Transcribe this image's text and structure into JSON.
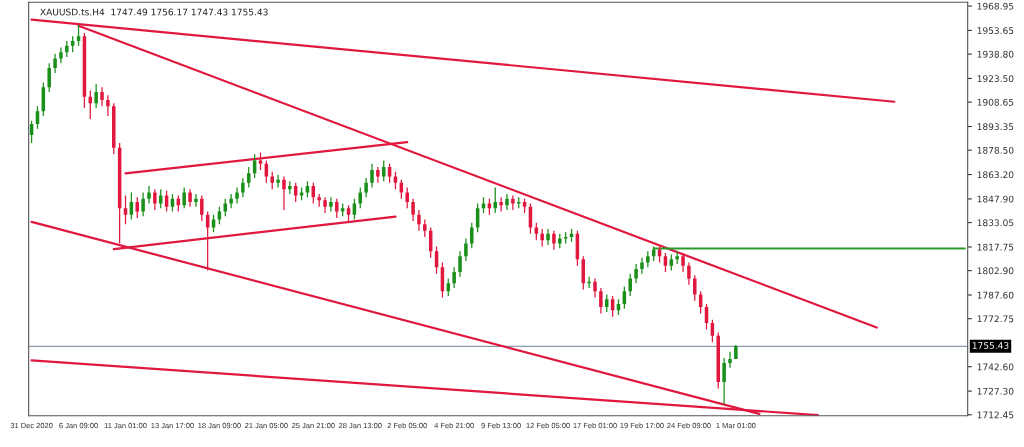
{
  "chart_data": {
    "type": "candlestick",
    "title": "XAUUSD.ts.H4  1747.49 1756.17 1747.43 1755.43",
    "colors": [
      "#1a8f1a",
      "#1a8f1a",
      "#1a8f1a",
      "#1a8f1a",
      "#1a8f1a",
      "#1a8f1a",
      "#1a8f1a",
      "#1a8f1a",
      "#1a8f1a",
      "#e0183f",
      "#e0183f",
      "#1a8f1a",
      "#e0183f",
      "#e0183f",
      "#e0183f",
      "#e0183f",
      "#e0183f",
      "#1a8f1a",
      "#e0183f",
      "#1a8f1a",
      "#1a8f1a",
      "#e0183f",
      "#1a8f1a",
      "#e0183f",
      "#1a8f1a",
      "#e0183f",
      "#1a8f1a",
      "#e0183f",
      "#1a8f1a",
      "#e0183f",
      "#e0183f",
      "#1a8f1a",
      "#1a8f1a",
      "#1a8f1a",
      "#1a8f1a",
      "#1a8f1a",
      "#1a8f1a",
      "#1a8f1a",
      "#1a8f1a",
      "#e0183f",
      "#e0183f",
      "#e0183f",
      "#1a8f1a",
      "#e0183f",
      "#1a8f1a",
      "#e0183f",
      "#1a8f1a",
      "#1a8f1a",
      "#e0183f",
      "#e0183f",
      "#e0183f",
      "#1a8f1a",
      "#e0183f",
      "#1a8f1a",
      "#e0183f",
      "#1a8f1a",
      "#1a8f1a",
      "#1a8f1a",
      "#1a8f1a",
      "#e0183f",
      "#1a8f1a",
      "#e0183f",
      "#e0183f",
      "#e0183f",
      "#e0183f",
      "#e0183f",
      "#e0183f",
      "#e0183f",
      "#e0183f",
      "#e0183f",
      "#e0183f",
      "#1a8f1a",
      "#1a8f1a",
      "#1a8f1a",
      "#1a8f1a",
      "#1a8f1a",
      "#1a8f1a",
      "#1a8f1a",
      "#e0183f",
      "#1a8f1a",
      "#e0183f",
      "#1a8f1a",
      "#e0183f",
      "#1a8f1a",
      "#e0183f",
      "#e0183f",
      "#e0183f",
      "#e0183f",
      "#1a8f1a",
      "#e0183f",
      "#1a8f1a",
      "#1a8f1a",
      "#1a8f1a",
      "#e0183f",
      "#e0183f",
      "#1a8f1a",
      "#e0183f",
      "#e0183f",
      "#1a8f1a",
      "#e0183f",
      "#1a8f1a",
      "#1a8f1a",
      "#1a8f1a",
      "#1a8f1a",
      "#1a8f1a",
      "#1a8f1a",
      "#1a8f1a",
      "#e0183f",
      "#e0183f",
      "#1a8f1a",
      "#1a8f1a",
      "#e0183f",
      "#e0183f",
      "#e0183f",
      "#e0183f",
      "#e0183f",
      "#e0183f",
      "#e0183f",
      "#1a8f1a",
      "#1a8f1a",
      "#1a8f1a",
      null,
      null,
      null,
      null,
      null,
      null,
      null,
      null,
      null,
      null,
      null,
      null,
      null,
      null,
      null,
      null,
      null,
      null,
      null,
      null,
      null,
      null,
      null,
      null,
      null,
      null,
      null,
      null,
      null,
      null,
      null,
      null,
      null,
      null,
      null,
      null,
      null,
      null,
      null
    ],
    "categories": [
      "31 Dec 2020",
      null,
      null,
      null,
      null,
      null,
      null,
      null,
      "6 Jan 09:00",
      null,
      null,
      null,
      null,
      null,
      null,
      null,
      "11 Jan 01:00",
      null,
      null,
      null,
      null,
      null,
      null,
      null,
      "13 Jan 17:00",
      null,
      null,
      null,
      null,
      null,
      null,
      null,
      "18 Jan 09:00",
      null,
      null,
      null,
      null,
      null,
      null,
      null,
      "21 Jan 05:00",
      null,
      null,
      null,
      null,
      null,
      null,
      null,
      "25 Jan 21:00",
      null,
      null,
      null,
      null,
      null,
      null,
      null,
      "28 Jan 13:00",
      null,
      null,
      null,
      null,
      null,
      null,
      null,
      "2 Feb 05:00",
      null,
      null,
      null,
      null,
      null,
      null,
      null,
      "4 Feb 21:00",
      null,
      null,
      null,
      null,
      null,
      null,
      null,
      "9 Feb 13:00",
      null,
      null,
      null,
      null,
      null,
      null,
      null,
      "12 Feb 05:00",
      null,
      null,
      null,
      null,
      null,
      null,
      null,
      "17 Feb 01:00",
      null,
      null,
      null,
      null,
      null,
      null,
      null,
      "19 Feb 17:00",
      null,
      null,
      null,
      null,
      null,
      null,
      null,
      "24 Feb 09:00",
      null,
      null,
      null,
      null,
      null,
      null,
      null,
      "1 Mar 01:00",
      null,
      null,
      null,
      null,
      null,
      null,
      null,
      null,
      null,
      null,
      null,
      null,
      null,
      null,
      null,
      null,
      null,
      null,
      null,
      null,
      null,
      null,
      null,
      null,
      null,
      null,
      null,
      null,
      null,
      null,
      null,
      null,
      null,
      null,
      null,
      null,
      null,
      null,
      null
    ],
    "ohlc": [
      [
        1888,
        1897,
        1883,
        1895
      ],
      [
        1895,
        1906,
        1892,
        1903
      ],
      [
        1903,
        1921,
        1900,
        1918
      ],
      [
        1918,
        1933,
        1915,
        1930
      ],
      [
        1930,
        1939,
        1927,
        1936
      ],
      [
        1936,
        1943,
        1933,
        1940
      ],
      [
        1940,
        1947,
        1937,
        1944
      ],
      [
        1944,
        1950,
        1940,
        1947
      ],
      [
        1947,
        1957,
        1944,
        1950
      ],
      [
        1950,
        1952,
        1905,
        1912
      ],
      [
        1912,
        1916,
        1898,
        1908
      ],
      [
        1908,
        1920,
        1905,
        1915
      ],
      [
        1915,
        1918,
        1906,
        1910
      ],
      [
        1910,
        1913,
        1900,
        1906
      ],
      [
        1906,
        1908,
        1876,
        1880
      ],
      [
        1880,
        1883,
        1820,
        1842
      ],
      [
        1842,
        1850,
        1832,
        1838
      ],
      [
        1838,
        1852,
        1835,
        1846
      ],
      [
        1846,
        1849,
        1836,
        1840
      ],
      [
        1840,
        1852,
        1837,
        1848
      ],
      [
        1848,
        1856,
        1845,
        1852
      ],
      [
        1852,
        1854,
        1841,
        1845
      ],
      [
        1845,
        1854,
        1842,
        1850
      ],
      [
        1850,
        1853,
        1840,
        1843
      ],
      [
        1843,
        1851,
        1840,
        1848
      ],
      [
        1848,
        1850,
        1840,
        1844
      ],
      [
        1844,
        1855,
        1842,
        1852
      ],
      [
        1852,
        1854,
        1843,
        1846
      ],
      [
        1846,
        1851,
        1843,
        1848
      ],
      [
        1848,
        1850,
        1834,
        1838
      ],
      [
        1838,
        1840,
        1803,
        1830
      ],
      [
        1830,
        1838,
        1827,
        1835
      ],
      [
        1835,
        1843,
        1832,
        1840
      ],
      [
        1840,
        1848,
        1837,
        1845
      ],
      [
        1845,
        1851,
        1842,
        1848
      ],
      [
        1848,
        1855,
        1845,
        1852
      ],
      [
        1852,
        1861,
        1849,
        1858
      ],
      [
        1858,
        1868,
        1855,
        1864
      ],
      [
        1864,
        1876,
        1861,
        1872
      ],
      [
        1872,
        1877,
        1866,
        1870
      ],
      [
        1870,
        1872,
        1858,
        1862
      ],
      [
        1862,
        1865,
        1854,
        1858
      ],
      [
        1858,
        1863,
        1855,
        1860
      ],
      [
        1860,
        1862,
        1841,
        1854
      ],
      [
        1854,
        1859,
        1851,
        1856
      ],
      [
        1856,
        1858,
        1846,
        1850
      ],
      [
        1850,
        1855,
        1847,
        1852
      ],
      [
        1852,
        1859,
        1849,
        1856
      ],
      [
        1856,
        1858,
        1845,
        1849
      ],
      [
        1849,
        1851,
        1843,
        1847
      ],
      [
        1847,
        1849,
        1839,
        1843
      ],
      [
        1843,
        1849,
        1840,
        1846
      ],
      [
        1846,
        1848,
        1836,
        1840
      ],
      [
        1840,
        1845,
        1837,
        1842
      ],
      [
        1842,
        1844,
        1834,
        1838
      ],
      [
        1838,
        1848,
        1835,
        1845
      ],
      [
        1845,
        1855,
        1842,
        1852
      ],
      [
        1852,
        1861,
        1849,
        1858
      ],
      [
        1858,
        1870,
        1855,
        1866
      ],
      [
        1866,
        1868,
        1858,
        1862
      ],
      [
        1862,
        1872,
        1859,
        1868
      ],
      [
        1868,
        1870,
        1858,
        1862
      ],
      [
        1862,
        1865,
        1854,
        1858
      ],
      [
        1858,
        1860,
        1848,
        1852
      ],
      [
        1852,
        1855,
        1842,
        1846
      ],
      [
        1846,
        1848,
        1834,
        1838
      ],
      [
        1838,
        1841,
        1828,
        1832
      ],
      [
        1832,
        1835,
        1824,
        1828
      ],
      [
        1828,
        1830,
        1811,
        1815
      ],
      [
        1815,
        1818,
        1801,
        1805
      ],
      [
        1805,
        1808,
        1786,
        1790
      ],
      [
        1790,
        1798,
        1787,
        1795
      ],
      [
        1795,
        1805,
        1792,
        1802
      ],
      [
        1802,
        1815,
        1799,
        1812
      ],
      [
        1812,
        1823,
        1809,
        1820
      ],
      [
        1820,
        1833,
        1817,
        1830
      ],
      [
        1830,
        1845,
        1827,
        1842
      ],
      [
        1842,
        1849,
        1839,
        1845
      ],
      [
        1845,
        1848,
        1838,
        1842
      ],
      [
        1842,
        1855,
        1839,
        1846
      ],
      [
        1846,
        1849,
        1840,
        1844
      ],
      [
        1844,
        1851,
        1841,
        1848
      ],
      [
        1848,
        1850,
        1841,
        1845
      ],
      [
        1845,
        1849,
        1842,
        1846
      ],
      [
        1846,
        1848,
        1839,
        1843
      ],
      [
        1843,
        1845,
        1826,
        1830
      ],
      [
        1830,
        1833,
        1822,
        1826
      ],
      [
        1826,
        1829,
        1818,
        1822
      ],
      [
        1822,
        1829,
        1819,
        1826
      ],
      [
        1826,
        1828,
        1816,
        1820
      ],
      [
        1820,
        1826,
        1817,
        1823
      ],
      [
        1823,
        1827,
        1820,
        1824
      ],
      [
        1824,
        1829,
        1821,
        1826
      ],
      [
        1826,
        1828,
        1806,
        1810
      ],
      [
        1810,
        1812,
        1791,
        1795
      ],
      [
        1795,
        1799,
        1792,
        1796
      ],
      [
        1796,
        1798,
        1786,
        1790
      ],
      [
        1790,
        1792,
        1776,
        1780
      ],
      [
        1780,
        1788,
        1777,
        1785
      ],
      [
        1785,
        1787,
        1774,
        1778
      ],
      [
        1778,
        1785,
        1775,
        1782
      ],
      [
        1782,
        1793,
        1779,
        1790
      ],
      [
        1790,
        1801,
        1787,
        1798
      ],
      [
        1798,
        1807,
        1795,
        1804
      ],
      [
        1804,
        1811,
        1801,
        1808
      ],
      [
        1808,
        1815,
        1805,
        1812
      ],
      [
        1812,
        1818,
        1809,
        1816
      ],
      [
        1816,
        1818,
        1808,
        1812
      ],
      [
        1812,
        1814,
        1802,
        1806
      ],
      [
        1806,
        1813,
        1803,
        1810
      ],
      [
        1810,
        1815,
        1807,
        1812
      ],
      [
        1812,
        1814,
        1802,
        1806
      ],
      [
        1806,
        1808,
        1794,
        1798
      ],
      [
        1798,
        1800,
        1784,
        1788
      ],
      [
        1788,
        1790,
        1776,
        1780
      ],
      [
        1780,
        1782,
        1766,
        1770
      ],
      [
        1770,
        1772,
        1758,
        1762
      ],
      [
        1762,
        1764,
        1729,
        1733
      ],
      [
        1733,
        1748,
        1719,
        1745
      ],
      [
        1745,
        1752,
        1742,
        1747.5
      ],
      [
        1747.49,
        1756.17,
        1747.43,
        1755.43
      ],
      null,
      null,
      null,
      null,
      null,
      null,
      null,
      null,
      null,
      null,
      null,
      null,
      null,
      null,
      null,
      null,
      null,
      null,
      null,
      null,
      null,
      null,
      null,
      null,
      null,
      null,
      null,
      null,
      null,
      null,
      null,
      null,
      null,
      null,
      null,
      null,
      null,
      null,
      null
    ],
    "series": [
      {
        "type": "line",
        "color": "#e0183f",
        "values": [
          1960.4,
          null,
          null,
          null,
          null,
          null,
          null,
          null,
          null,
          null,
          null,
          null,
          null,
          null,
          null,
          null,
          null,
          null,
          null,
          null,
          null,
          null,
          null,
          null,
          null,
          null,
          null,
          null,
          null,
          null,
          null,
          null,
          null,
          null,
          null,
          null,
          null,
          null,
          null,
          null,
          null,
          null,
          null,
          null,
          null,
          null,
          null,
          null,
          null,
          null,
          null,
          null,
          null,
          null,
          null,
          null,
          null,
          null,
          null,
          null,
          null,
          null,
          null,
          null,
          null,
          null,
          null,
          null,
          null,
          null,
          null,
          null,
          null,
          null,
          null,
          null,
          null,
          null,
          null,
          null,
          null,
          null,
          null,
          null,
          null,
          null,
          null,
          null,
          null,
          null,
          null,
          null,
          null,
          null,
          null,
          null,
          null,
          null,
          null,
          null,
          null,
          null,
          null,
          null,
          null,
          null,
          null,
          null,
          null,
          null,
          null,
          null,
          null,
          null,
          null,
          null,
          null,
          null,
          null,
          null,
          null,
          null,
          null,
          null,
          null,
          null,
          null,
          null,
          null,
          null,
          null,
          null,
          null,
          null,
          null,
          null,
          null,
          null,
          null,
          null,
          null,
          null,
          null,
          null,
          null,
          null,
          null,
          1908.9,
          null,
          null,
          null,
          null,
          null,
          null,
          null,
          null,
          null,
          null,
          null,
          null
        ]
      },
      {
        "type": "line",
        "color": "#e0183f",
        "values": [
          null,
          null,
          null,
          null,
          null,
          null,
          null,
          null,
          1956.6,
          null,
          null,
          null,
          null,
          null,
          null,
          null,
          null,
          null,
          null,
          null,
          null,
          null,
          null,
          null,
          null,
          null,
          null,
          null,
          null,
          null,
          null,
          null,
          null,
          null,
          null,
          null,
          null,
          null,
          null,
          null,
          null,
          null,
          null,
          null,
          null,
          null,
          null,
          null,
          null,
          null,
          null,
          null,
          null,
          null,
          null,
          null,
          null,
          null,
          null,
          null,
          null,
          null,
          null,
          null,
          null,
          null,
          null,
          null,
          null,
          null,
          null,
          null,
          null,
          null,
          null,
          null,
          null,
          null,
          null,
          null,
          null,
          null,
          null,
          null,
          null,
          null,
          null,
          null,
          null,
          null,
          null,
          null,
          null,
          null,
          null,
          null,
          null,
          null,
          null,
          null,
          null,
          null,
          null,
          null,
          null,
          null,
          null,
          null,
          null,
          null,
          null,
          null,
          null,
          null,
          null,
          null,
          null,
          null,
          null,
          null,
          null,
          null,
          null,
          null,
          null,
          null,
          null,
          null,
          null,
          null,
          null,
          null,
          null,
          null,
          null,
          null,
          null,
          null,
          null,
          null,
          null,
          null,
          null,
          null,
          1767.2,
          null,
          null,
          null,
          null,
          null,
          null,
          null,
          null,
          null,
          null,
          null,
          null,
          null,
          null,
          null
        ]
      },
      {
        "type": "line",
        "color": "#e0183f",
        "values": [
          null,
          null,
          null,
          null,
          null,
          null,
          null,
          null,
          null,
          null,
          null,
          null,
          null,
          null,
          null,
          null,
          1863.9,
          null,
          null,
          null,
          null,
          null,
          null,
          null,
          null,
          null,
          null,
          null,
          null,
          null,
          null,
          null,
          null,
          null,
          null,
          null,
          null,
          null,
          null,
          null,
          null,
          null,
          null,
          null,
          null,
          null,
          null,
          null,
          null,
          null,
          null,
          null,
          null,
          null,
          null,
          null,
          null,
          null,
          null,
          null,
          null,
          null,
          null,
          null,
          1883.6,
          null,
          null,
          null,
          null,
          null,
          null,
          null,
          null,
          null,
          null,
          null,
          null,
          null,
          null,
          null,
          null,
          null,
          null,
          null,
          null,
          null,
          null,
          null,
          null,
          null,
          null,
          null,
          null,
          null,
          null,
          null,
          null,
          null,
          null,
          null,
          null,
          null,
          null,
          null,
          null,
          null,
          null,
          null,
          null,
          null,
          null,
          null,
          null,
          null,
          null,
          null,
          null,
          null,
          null,
          null,
          null,
          null,
          null,
          null,
          null,
          null,
          null,
          null,
          null,
          null,
          null,
          null,
          null,
          null,
          null,
          null,
          null,
          null,
          null,
          null,
          null,
          null,
          null,
          null,
          null,
          null,
          null,
          null,
          null,
          null,
          null,
          null,
          null,
          null,
          null,
          null,
          null,
          null,
          null,
          null
        ]
      },
      {
        "type": "line",
        "color": "#e0183f",
        "values": [
          null,
          null,
          null,
          null,
          null,
          null,
          null,
          null,
          null,
          null,
          null,
          null,
          null,
          null,
          1816.4,
          null,
          null,
          null,
          null,
          null,
          null,
          null,
          null,
          null,
          null,
          null,
          null,
          null,
          null,
          null,
          null,
          null,
          null,
          null,
          null,
          null,
          null,
          null,
          null,
          null,
          null,
          null,
          null,
          null,
          null,
          null,
          null,
          null,
          null,
          null,
          null,
          null,
          null,
          null,
          null,
          null,
          null,
          null,
          null,
          null,
          null,
          null,
          1836.8,
          null,
          null,
          null,
          null,
          null,
          null,
          null,
          null,
          null,
          null,
          null,
          null,
          null,
          null,
          null,
          null,
          null,
          null,
          null,
          null,
          null,
          null,
          null,
          null,
          null,
          null,
          null,
          null,
          null,
          null,
          null,
          null,
          null,
          null,
          null,
          null,
          null,
          null,
          null,
          null,
          null,
          null,
          null,
          null,
          null,
          null,
          null,
          null,
          null,
          null,
          null,
          null,
          null,
          null,
          null,
          null,
          null,
          null,
          null,
          null,
          null,
          null,
          null,
          null,
          null,
          null,
          null,
          null,
          null,
          null,
          null,
          null,
          null,
          null,
          null,
          null,
          null,
          null,
          null,
          null,
          null,
          null,
          null,
          null,
          null,
          null,
          null,
          null,
          null,
          null,
          null,
          null,
          null,
          null,
          null,
          null,
          null
        ]
      },
      {
        "type": "line",
        "color": "#e0183f",
        "values": [
          1833.5,
          null,
          null,
          null,
          null,
          null,
          null,
          null,
          null,
          null,
          null,
          null,
          null,
          null,
          null,
          null,
          null,
          null,
          null,
          null,
          null,
          null,
          null,
          null,
          null,
          null,
          null,
          null,
          null,
          null,
          null,
          null,
          null,
          null,
          null,
          null,
          null,
          null,
          null,
          null,
          null,
          null,
          null,
          null,
          null,
          null,
          null,
          null,
          null,
          null,
          null,
          null,
          null,
          null,
          null,
          null,
          null,
          null,
          null,
          null,
          null,
          null,
          null,
          null,
          null,
          null,
          null,
          null,
          null,
          null,
          null,
          null,
          null,
          null,
          null,
          null,
          null,
          null,
          null,
          null,
          null,
          null,
          null,
          null,
          null,
          null,
          null,
          null,
          null,
          null,
          null,
          null,
          null,
          null,
          null,
          null,
          null,
          null,
          null,
          null,
          null,
          null,
          null,
          null,
          null,
          null,
          null,
          null,
          null,
          null,
          null,
          null,
          null,
          null,
          null,
          null,
          null,
          null,
          null,
          null,
          null,
          null,
          null,
          null,
          1713.0,
          null,
          null,
          null,
          null,
          null,
          null,
          null,
          null,
          null,
          null,
          null,
          null,
          null,
          null,
          null,
          null,
          null,
          null,
          null,
          null,
          null,
          null,
          null,
          null,
          null,
          null,
          null,
          null,
          null,
          null,
          null,
          null,
          null,
          null,
          null
        ]
      },
      {
        "type": "line",
        "color": "#e0183f",
        "values": [
          1746.6,
          null,
          null,
          null,
          null,
          null,
          null,
          null,
          null,
          null,
          null,
          null,
          null,
          null,
          null,
          null,
          null,
          null,
          null,
          null,
          null,
          null,
          null,
          null,
          null,
          null,
          null,
          null,
          null,
          null,
          null,
          null,
          null,
          null,
          null,
          null,
          null,
          null,
          null,
          null,
          null,
          null,
          null,
          null,
          null,
          null,
          null,
          null,
          null,
          null,
          null,
          null,
          null,
          null,
          null,
          null,
          null,
          null,
          null,
          null,
          null,
          null,
          null,
          null,
          null,
          null,
          null,
          null,
          null,
          null,
          null,
          null,
          null,
          null,
          null,
          null,
          null,
          null,
          null,
          null,
          null,
          null,
          null,
          null,
          null,
          null,
          null,
          null,
          null,
          null,
          null,
          null,
          null,
          null,
          null,
          null,
          null,
          null,
          null,
          null,
          null,
          null,
          null,
          null,
          null,
          null,
          null,
          null,
          null,
          null,
          null,
          null,
          null,
          null,
          null,
          null,
          null,
          null,
          null,
          null,
          null,
          null,
          null,
          null,
          null,
          null,
          null,
          null,
          null,
          null,
          null,
          null,
          null,
          null,
          1712.2,
          null,
          null,
          null,
          null,
          null,
          null,
          null,
          null,
          null,
          null,
          null,
          null,
          null,
          null,
          null,
          null,
          null,
          null,
          null,
          null,
          null,
          null,
          null,
          null,
          null
        ]
      },
      {
        "type": "line",
        "color": "#2a9a2a",
        "values": [
          null,
          null,
          null,
          null,
          null,
          null,
          null,
          null,
          null,
          null,
          null,
          null,
          null,
          null,
          null,
          null,
          null,
          null,
          null,
          null,
          null,
          null,
          null,
          null,
          null,
          null,
          null,
          null,
          null,
          null,
          null,
          null,
          null,
          null,
          null,
          null,
          null,
          null,
          null,
          null,
          null,
          null,
          null,
          null,
          null,
          null,
          null,
          null,
          null,
          null,
          null,
          null,
          null,
          null,
          null,
          null,
          null,
          null,
          null,
          null,
          null,
          null,
          null,
          null,
          null,
          null,
          null,
          null,
          null,
          null,
          null,
          null,
          null,
          null,
          null,
          null,
          null,
          null,
          null,
          null,
          null,
          null,
          null,
          null,
          null,
          null,
          null,
          null,
          null,
          null,
          null,
          null,
          null,
          null,
          null,
          null,
          null,
          null,
          null,
          null,
          null,
          null,
          null,
          null,
          null,
          null,
          1816.8,
          null,
          null,
          null,
          null,
          null,
          null,
          null,
          null,
          null,
          null,
          null,
          null,
          null,
          null,
          null,
          null,
          null,
          null,
          null,
          null,
          null,
          null,
          null,
          null,
          null,
          null,
          null,
          null,
          null,
          null,
          null,
          null,
          null,
          null,
          null,
          null,
          null,
          null,
          null,
          null,
          null,
          null,
          null,
          null,
          null,
          null,
          null,
          null,
          null,
          null,
          null,
          null,
          1816.8
        ]
      }
    ],
    "ref_lines": [
      {
        "axis": "y",
        "value": 1755.43,
        "label": "1755.43",
        "color": "#8a9aaa"
      }
    ],
    "ylim": [
      1711.85,
      1971.35
    ],
    "yticks": [
      {
        "value": 1968.95,
        "label": "1968.95"
      },
      {
        "value": 1953.65,
        "label": "1953.65"
      },
      {
        "value": 1938.8,
        "label": "1938.80"
      },
      {
        "value": 1923.5,
        "label": "1923.50"
      },
      {
        "value": 1908.65,
        "label": "1908.65"
      },
      {
        "value": 1893.35,
        "label": "1893.35"
      },
      {
        "value": 1878.5,
        "label": "1878.50"
      },
      {
        "value": 1863.2,
        "label": "1863.20"
      },
      {
        "value": 1847.9,
        "label": "1847.90"
      },
      {
        "value": 1833.05,
        "label": "1833.05"
      },
      {
        "value": 1817.75,
        "label": "1817.75"
      },
      {
        "value": 1802.9,
        "label": "1802.90"
      },
      {
        "value": 1787.6,
        "label": "1787.60"
      },
      {
        "value": 1772.75,
        "label": "1772.75"
      },
      {
        "value": 1742.6,
        "label": "1742.60"
      },
      {
        "value": 1727.3,
        "label": "1727.30"
      },
      {
        "value": 1712.45,
        "label": "1712.45"
      }
    ],
    "grid": false
  }
}
